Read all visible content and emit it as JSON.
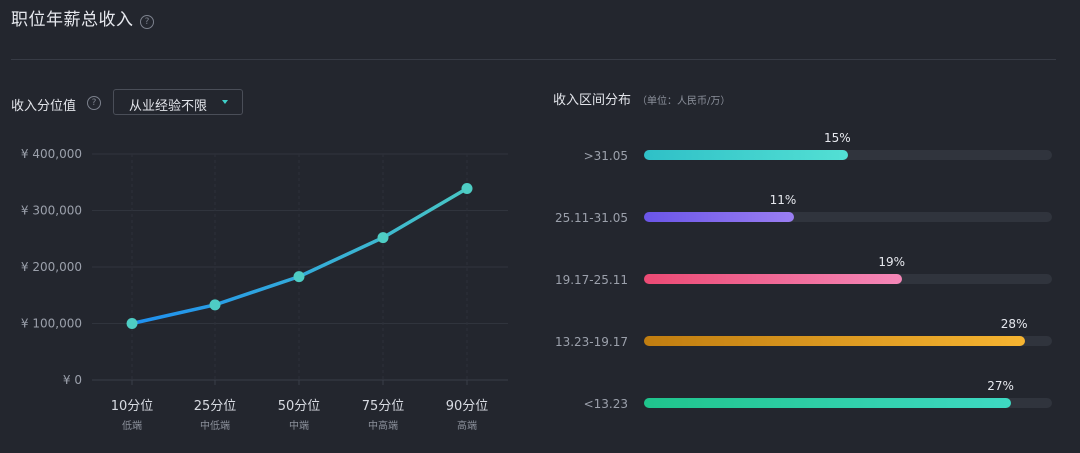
{
  "header": {
    "title": "职位年薪总收入",
    "help": "?"
  },
  "left_panel": {
    "title": "收入分位值",
    "help": "?",
    "filter": {
      "selected": "从业经验不限"
    }
  },
  "right_panel": {
    "title": "收入区间分布",
    "unit_note": "（单位：人民币/万）"
  },
  "colors": {
    "line_start": "#1e8ff0",
    "line_end": "#48c6c4",
    "point": "#4ecdc4",
    "bar_colors": [
      [
        "#2fc0c7",
        "#53e0d4"
      ],
      [
        "#6a55e8",
        "#9a7ef2"
      ],
      [
        "#ec4a74",
        "#f487b8"
      ],
      [
        "#c07d10",
        "#f6b431"
      ],
      [
        "#1fc48c",
        "#3ed9c3"
      ]
    ]
  },
  "chart_data": [
    {
      "type": "line",
      "categories": [
        "10分位",
        "25分位",
        "50分位",
        "75分位",
        "90分位"
      ],
      "sublabels": [
        "低端",
        "中低端",
        "中端",
        "中高端",
        "高端"
      ],
      "values": [
        100000,
        133000,
        183000,
        252000,
        339000
      ],
      "yticks": [
        "¥ 0",
        "¥ 100,000",
        "¥ 200,000",
        "¥ 300,000",
        "¥ 400,000"
      ],
      "ylim": [
        0,
        400000
      ],
      "grid": true
    },
    {
      "type": "bar",
      "orientation": "horizontal",
      "categories": [
        ">31.05",
        "25.11-31.05",
        "19.17-25.11",
        "13.23-19.17",
        "<13.23"
      ],
      "values": [
        15,
        11,
        19,
        28,
        27
      ],
      "labels": [
        "15%",
        "11%",
        "19%",
        "28%",
        "27%"
      ],
      "xlim": [
        0,
        30
      ]
    }
  ]
}
